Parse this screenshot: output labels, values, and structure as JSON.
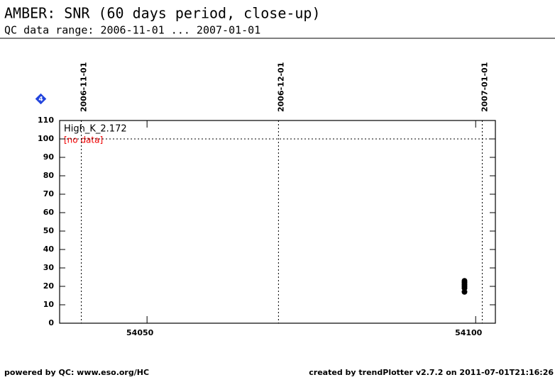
{
  "chart_data": {
    "type": "scatter",
    "title": "AMBER: SNR (60 days period, close-up)",
    "subtitle": "QC data range: 2006-11-01 ... 2007-01-01",
    "series_label": "High_K_2.172",
    "status_note": "[no data]",
    "badge": "4",
    "footer_left": "powered by QC: www.eso.org/HC",
    "footer_right": "created by trendPlotter v2.7.2 on 2011-07-01T21:16:26",
    "x": [
      54098.3,
      54098.3,
      54098.3,
      54098.3,
      54098.3,
      54098.3
    ],
    "values": [
      17,
      19,
      20,
      21,
      22,
      23
    ],
    "color": "#000000",
    "xlim": [
      54036.7,
      54103
    ],
    "xticks": [
      54050,
      54100
    ],
    "ylim": [
      0,
      110
    ],
    "yticks": [
      0,
      10,
      20,
      30,
      40,
      50,
      60,
      70,
      80,
      90,
      100,
      110
    ],
    "date_markers": [
      {
        "value": 54040,
        "label": "2006-11-01"
      },
      {
        "value": 54070,
        "label": "2006-12-01"
      },
      {
        "value": 54101,
        "label": "2007-01-01"
      }
    ],
    "reference_line": 100
  }
}
